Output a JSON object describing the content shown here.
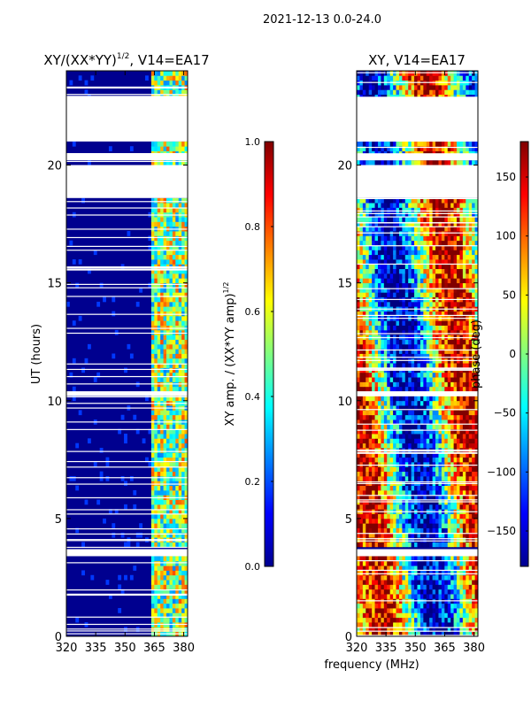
{
  "figure": {
    "suptitle": "2021-12-13 0.0-24.0",
    "shared_xlabel": "frequency (MHz)"
  },
  "chart_data": [
    {
      "type": "heatmap",
      "title": "XY/(XX*YY)",
      "title_exponent": "1/2",
      "title_suffix": ", V14=EA17",
      "xlabel": "frequency (MHz)",
      "ylabel": "UT (hours)",
      "xlim": [
        320,
        382
      ],
      "ylim": [
        0,
        24
      ],
      "xticks": [
        320,
        335,
        350,
        365,
        380
      ],
      "yticks": [
        0,
        5,
        10,
        15,
        20
      ],
      "colorbar": {
        "label": "XY amp. / (XX*YY amp)",
        "label_exponent": "1/2",
        "range": [
          0.0,
          1.0
        ],
        "ticks": [
          "0.0",
          "0.2",
          "0.4",
          "0.6",
          "0.8",
          "1.0"
        ],
        "colormap": "jet"
      },
      "flagged_hours": [
        [
          18.6,
          20.0
        ],
        [
          20.2,
          20.5
        ],
        [
          21.0,
          22.9
        ],
        [
          3.4,
          3.7
        ],
        [
          10.2,
          10.4
        ]
      ],
      "band_mhz": [
        363,
        382
      ]
    },
    {
      "type": "heatmap",
      "title": "XY, V14=EA17",
      "xlabel": "frequency (MHz)",
      "ylabel": "",
      "xlim": [
        320,
        382
      ],
      "ylim": [
        0,
        24
      ],
      "xticks": [
        320,
        335,
        350,
        365,
        380
      ],
      "yticks": [
        0,
        5,
        10,
        15,
        20
      ],
      "colorbar": {
        "label": "phase (deg)",
        "range": [
          -180,
          180
        ],
        "ticks": [
          "−150",
          "−100",
          "−50",
          "0",
          "50",
          "100",
          "150"
        ],
        "colormap": "jet"
      },
      "flagged_hours": [
        [
          18.6,
          20.0
        ],
        [
          20.2,
          20.5
        ],
        [
          21.0,
          22.9
        ],
        [
          3.4,
          3.7
        ],
        [
          10.2,
          10.4
        ]
      ]
    }
  ],
  "colors": {
    "jet_low": "#00008f",
    "jet_high": "#800000",
    "flag": "#ffffff"
  }
}
